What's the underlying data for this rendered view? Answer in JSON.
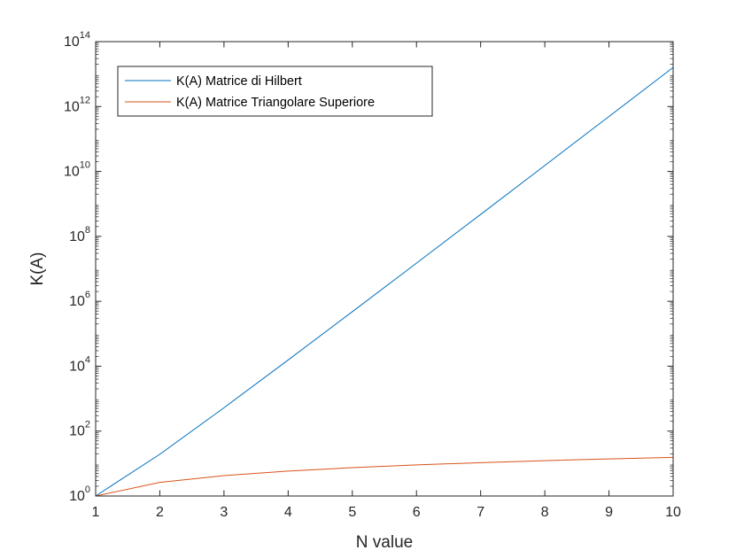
{
  "chart_data": {
    "type": "line",
    "xlabel": "N value",
    "ylabel": "K(A)",
    "x_scale": "linear",
    "y_scale": "log",
    "xlim": [
      1,
      10
    ],
    "ylim": [
      1,
      100000000000000
    ],
    "x_ticks": [
      "1",
      "2",
      "3",
      "4",
      "5",
      "6",
      "7",
      "8",
      "9",
      "10"
    ],
    "y_ticks": [
      {
        "base": "10",
        "exp": "0"
      },
      {
        "base": "10",
        "exp": "2"
      },
      {
        "base": "10",
        "exp": "4"
      },
      {
        "base": "10",
        "exp": "6"
      },
      {
        "base": "10",
        "exp": "8"
      },
      {
        "base": "10",
        "exp": "10"
      },
      {
        "base": "10",
        "exp": "12"
      },
      {
        "base": "10",
        "exp": "14"
      }
    ],
    "grid": false,
    "legend_position": "top-left",
    "x": [
      1,
      2,
      3,
      4,
      5,
      6,
      7,
      8,
      9,
      10
    ],
    "series": [
      {
        "name": "K(A) Matrice di Hilbert",
        "color": "#0072BD",
        "values": [
          1,
          19.3,
          524,
          15500,
          477000,
          14950000,
          475400000,
          15260000000,
          493200000000,
          16020000000000
        ]
      },
      {
        "name": "K(A) Matrice Triangolare Superiore",
        "color": "#D95319",
        "values": [
          1,
          2.62,
          4.24,
          5.85,
          7.46,
          9.07,
          10.67,
          12.28,
          13.89,
          15.5
        ]
      }
    ]
  }
}
